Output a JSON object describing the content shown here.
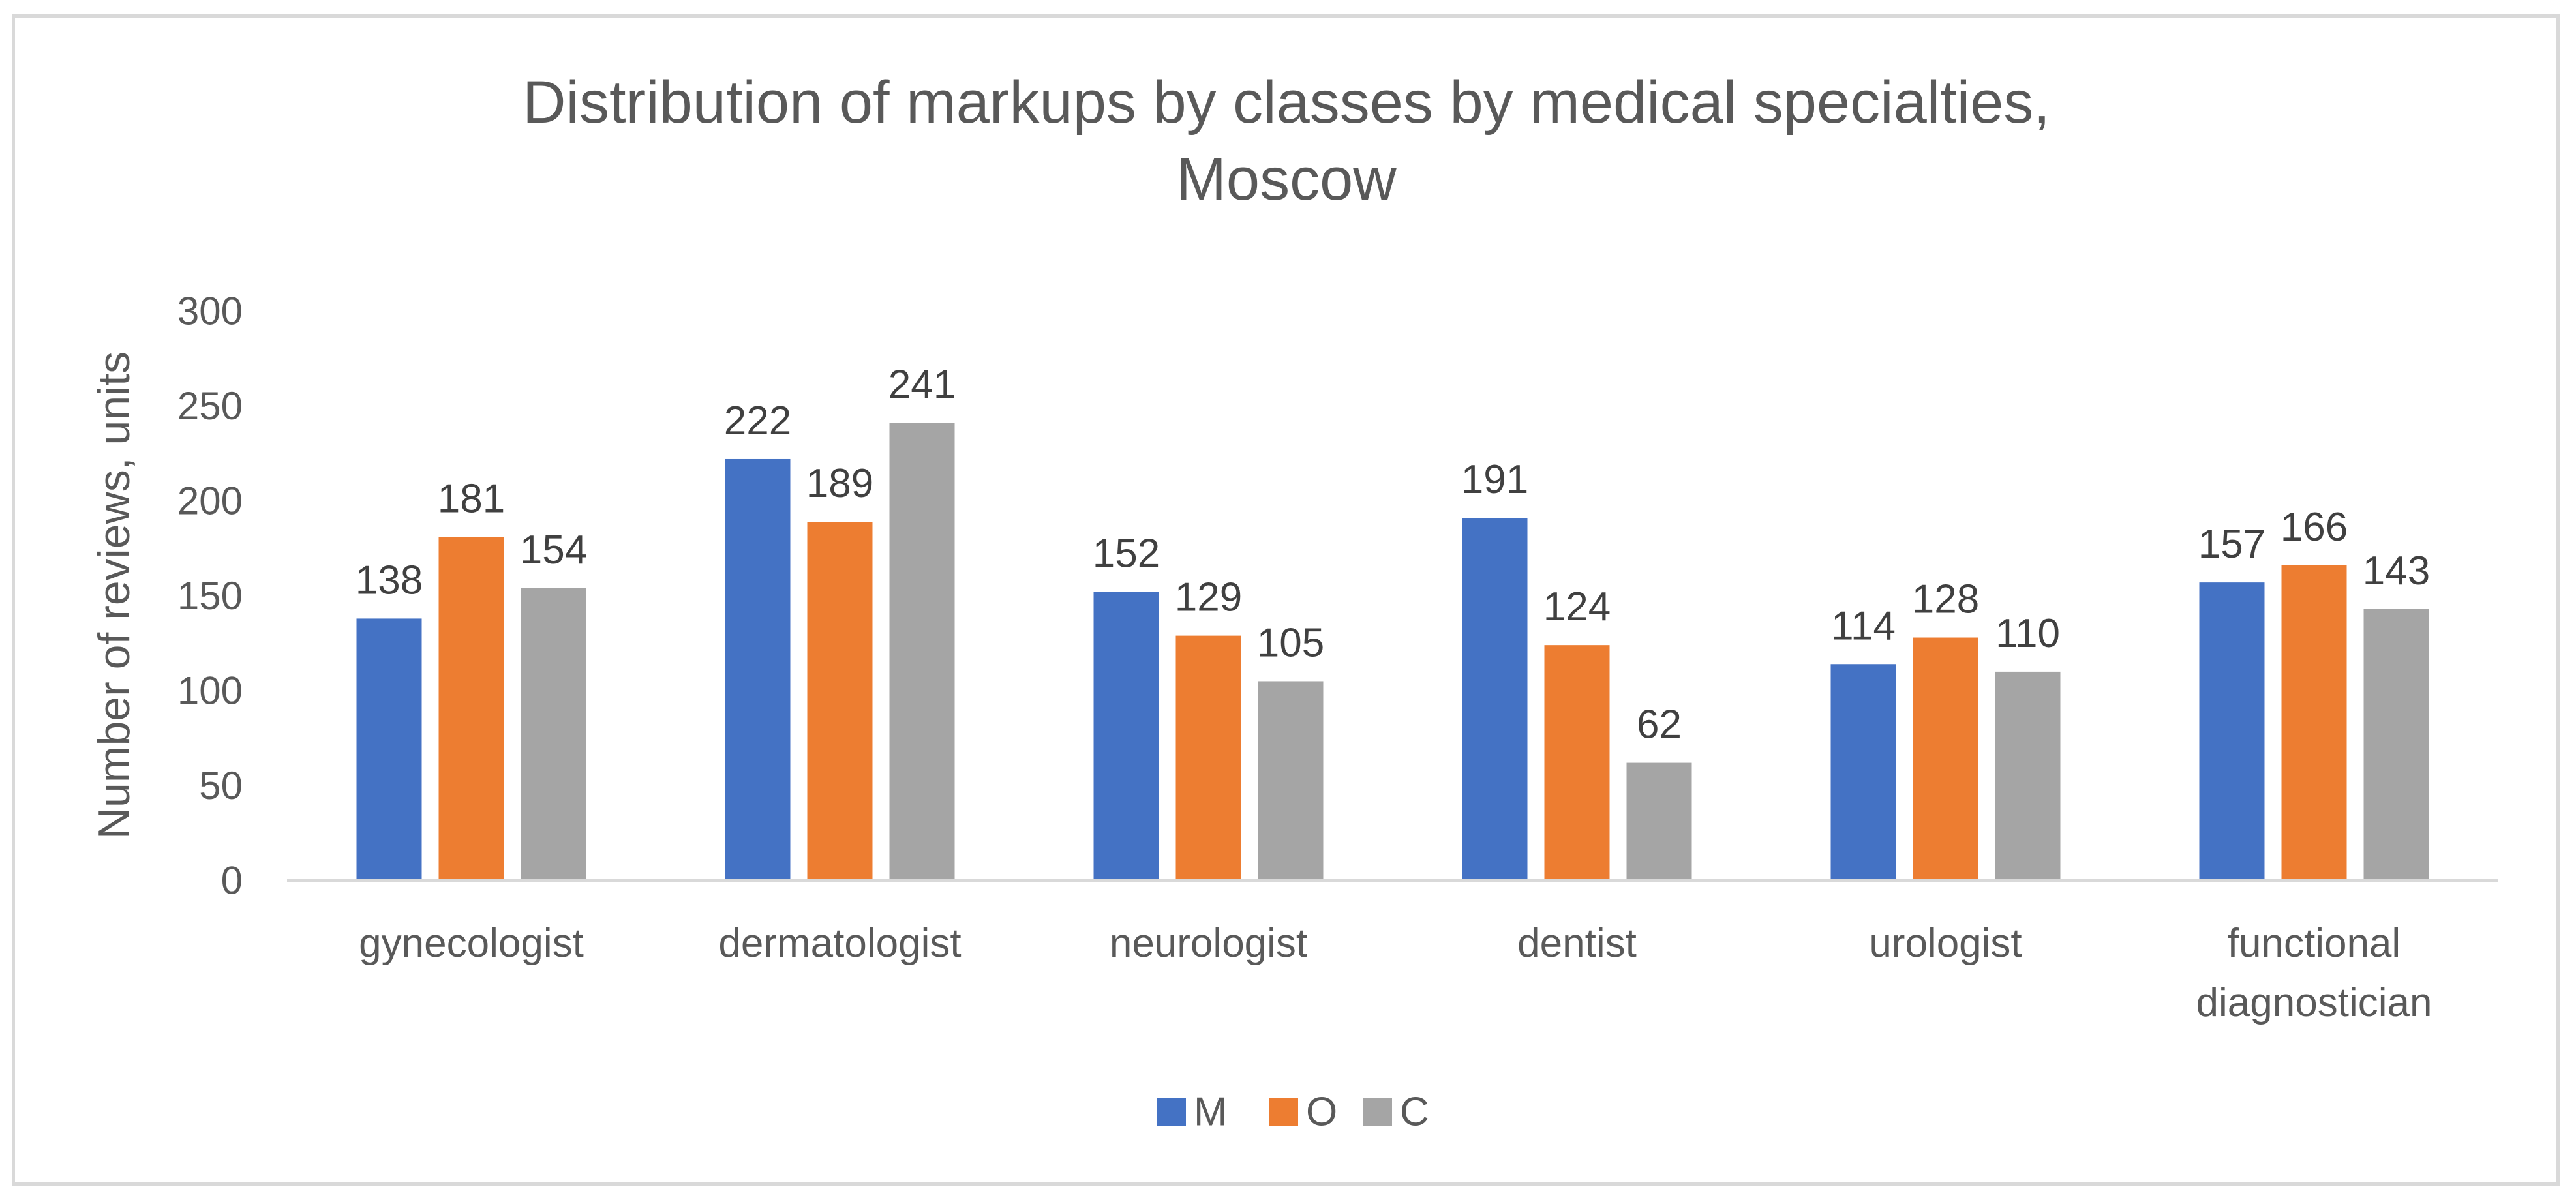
{
  "chart_data": {
    "type": "bar",
    "title_lines": [
      "Distribution of markups by classes by medical specialties,",
      "Moscow"
    ],
    "ylabel": "Number of reviews, units",
    "xlabel": "",
    "ylim": [
      0,
      300
    ],
    "yticks": [
      "0",
      "50",
      "100",
      "150",
      "200",
      "250",
      "300"
    ],
    "categories": [
      [
        "gynecologist"
      ],
      [
        "dermatologist"
      ],
      [
        "neurologist"
      ],
      [
        "dentist"
      ],
      [
        "urologist"
      ],
      [
        "functional",
        "diagnostician"
      ]
    ],
    "series": [
      {
        "name": "M",
        "color": "#4472c4",
        "values": [
          138,
          222,
          152,
          191,
          114,
          157
        ]
      },
      {
        "name": "O",
        "color": "#ed7d31",
        "values": [
          181,
          189,
          129,
          124,
          128,
          166
        ]
      },
      {
        "name": "C",
        "color": "#a5a5a5",
        "values": [
          154,
          241,
          105,
          62,
          110,
          143
        ]
      }
    ],
    "grid": false,
    "data_labels": true,
    "legend_position": "bottom",
    "text_color": "#595959",
    "label_color": "#404040",
    "axis_color": "#d9d9d9"
  }
}
